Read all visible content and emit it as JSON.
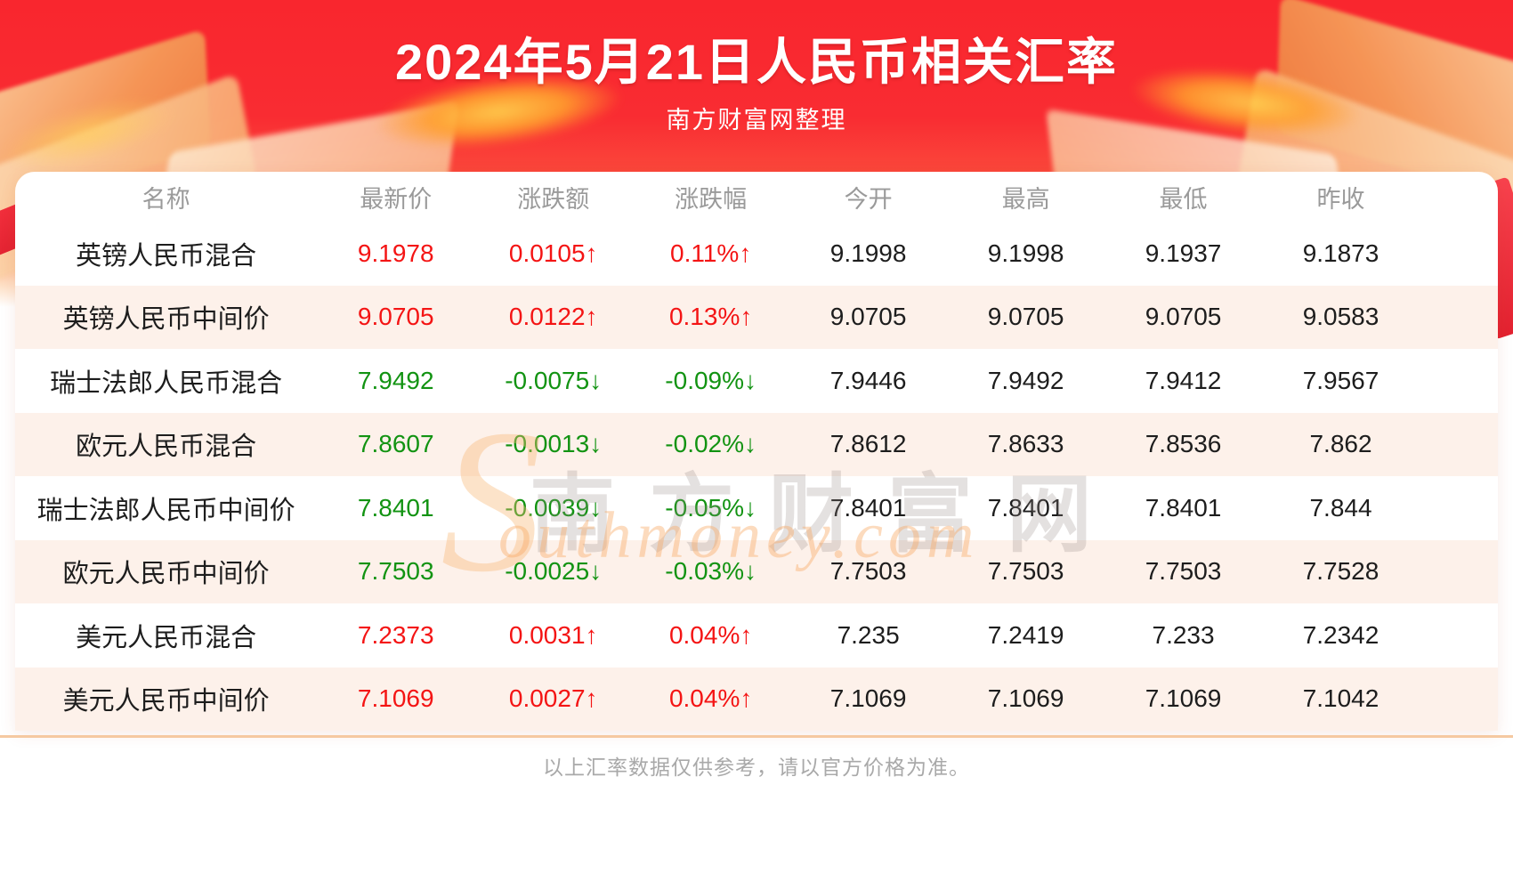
{
  "page": {
    "title": "2024年5月21日人民币相关汇率",
    "subtitle": "南方财富网整理",
    "footer_note": "以上汇率数据仅供参考，请以官方价格为准。"
  },
  "watermark": {
    "cn": "南方财富网",
    "s_initial": "S",
    "en": "outhmoney.com"
  },
  "colors": {
    "hero_red": "#f92c32",
    "hero_fade": "#fcaf85",
    "up": "#f41414",
    "down": "#129312",
    "row_alt": "#fdf1ea",
    "header_text": "#9a9a9a",
    "value_text": "#1d1d1d",
    "divider": "#f5c9a1"
  },
  "table": {
    "columns": [
      "名称",
      "最新价",
      "涨跌额",
      "涨跌幅",
      "今开",
      "最高",
      "最低",
      "昨收"
    ],
    "rows": [
      {
        "name": "英镑人民币混合",
        "latest": "9.1978",
        "change": "0.0105↑",
        "change_pct": "0.11%↑",
        "open": "9.1998",
        "high": "9.1998",
        "low": "9.1937",
        "prev_close": "9.1873",
        "direction": "row-up"
      },
      {
        "name": "英镑人民币中间价",
        "latest": "9.0705",
        "change": "0.0122↑",
        "change_pct": "0.13%↑",
        "open": "9.0705",
        "high": "9.0705",
        "low": "9.0705",
        "prev_close": "9.0583",
        "direction": "row-up"
      },
      {
        "name": "瑞士法郎人民币混合",
        "latest": "7.9492",
        "change": "-0.0075↓",
        "change_pct": "-0.09%↓",
        "open": "7.9446",
        "high": "7.9492",
        "low": "7.9412",
        "prev_close": "7.9567",
        "direction": "row-down"
      },
      {
        "name": "欧元人民币混合",
        "latest": "7.8607",
        "change": "-0.0013↓",
        "change_pct": "-0.02%↓",
        "open": "7.8612",
        "high": "7.8633",
        "low": "7.8536",
        "prev_close": "7.862",
        "direction": "row-down"
      },
      {
        "name": "瑞士法郎人民币中间价",
        "latest": "7.8401",
        "change": "-0.0039↓",
        "change_pct": "-0.05%↓",
        "open": "7.8401",
        "high": "7.8401",
        "low": "7.8401",
        "prev_close": "7.844",
        "direction": "row-down"
      },
      {
        "name": "欧元人民币中间价",
        "latest": "7.7503",
        "change": "-0.0025↓",
        "change_pct": "-0.03%↓",
        "open": "7.7503",
        "high": "7.7503",
        "low": "7.7503",
        "prev_close": "7.7528",
        "direction": "row-down"
      },
      {
        "name": "美元人民币混合",
        "latest": "7.2373",
        "change": "0.0031↑",
        "change_pct": "0.04%↑",
        "open": "7.235",
        "high": "7.2419",
        "low": "7.233",
        "prev_close": "7.2342",
        "direction": "row-up"
      },
      {
        "name": "美元人民币中间价",
        "latest": "7.1069",
        "change": "0.0027↑",
        "change_pct": "0.04%↑",
        "open": "7.1069",
        "high": "7.1069",
        "low": "7.1069",
        "prev_close": "7.1042",
        "direction": "row-up"
      }
    ]
  },
  "chart_data": {
    "type": "table",
    "title": "2024年5月21日人民币相关汇率",
    "columns": [
      "名称",
      "最新价",
      "涨跌额",
      "涨跌幅",
      "今开",
      "最高",
      "最低",
      "昨收"
    ],
    "rows": [
      [
        "英镑人民币混合",
        9.1978,
        0.0105,
        "0.11%",
        9.1998,
        9.1998,
        9.1937,
        9.1873
      ],
      [
        "英镑人民币中间价",
        9.0705,
        0.0122,
        "0.13%",
        9.0705,
        9.0705,
        9.0705,
        9.0583
      ],
      [
        "瑞士法郎人民币混合",
        7.9492,
        -0.0075,
        "-0.09%",
        7.9446,
        7.9492,
        7.9412,
        7.9567
      ],
      [
        "欧元人民币混合",
        7.8607,
        -0.0013,
        "-0.02%",
        7.8612,
        7.8633,
        7.8536,
        7.862
      ],
      [
        "瑞士法郎人民币中间价",
        7.8401,
        -0.0039,
        "-0.05%",
        7.8401,
        7.8401,
        7.8401,
        7.844
      ],
      [
        "欧元人民币中间价",
        7.7503,
        -0.0025,
        "-0.03%",
        7.7503,
        7.7503,
        7.7503,
        7.7528
      ],
      [
        "美元人民币混合",
        7.2373,
        0.0031,
        "0.04%",
        7.235,
        7.2419,
        7.233,
        7.2342
      ],
      [
        "美元人民币中间价",
        7.1069,
        0.0027,
        "0.04%",
        7.1069,
        7.1069,
        7.1069,
        7.1042
      ]
    ]
  }
}
